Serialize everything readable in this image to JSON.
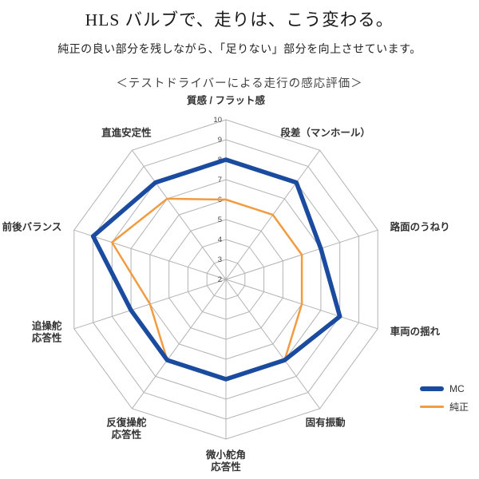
{
  "header": {
    "title": "HLS バルブで、走りは、こう変わる。",
    "subtitle": "純正の良い部分を残しながら、「足りない」部分を向上させています。",
    "caption": "＜テストドライバーによる走行の感応評価＞"
  },
  "chart_data": {
    "type": "radar",
    "title": "テストドライバーによる走行の感応評価",
    "axes": [
      [
        "質感 / フラット感"
      ],
      [
        "段差（マンホール）"
      ],
      [
        "路面のうねり"
      ],
      [
        "車両の揺れ"
      ],
      [
        "固有振動"
      ],
      [
        "微小舵角",
        "応答性"
      ],
      [
        "反復操舵",
        "応答性"
      ],
      [
        "追操舵",
        "応答性"
      ],
      [
        "前後バランス"
      ],
      [
        "直進安定性"
      ]
    ],
    "scale": {
      "min": 2,
      "max": 10,
      "ticks": [
        2,
        3,
        4,
        5,
        6,
        7,
        8,
        9,
        10
      ]
    },
    "series": [
      {
        "name": "MC",
        "color": "#1b4b9e",
        "width": 5.5,
        "values": [
          8,
          8,
          7,
          8,
          7,
          7,
          7,
          7,
          9,
          8
        ]
      },
      {
        "name": "純正",
        "color": "#f29b40",
        "width": 2.5,
        "values": [
          6,
          6,
          6,
          6,
          7,
          7,
          7,
          6,
          8,
          7
        ]
      }
    ],
    "grid_color": "#b3b3b3",
    "legend_position": "bottom-right"
  }
}
